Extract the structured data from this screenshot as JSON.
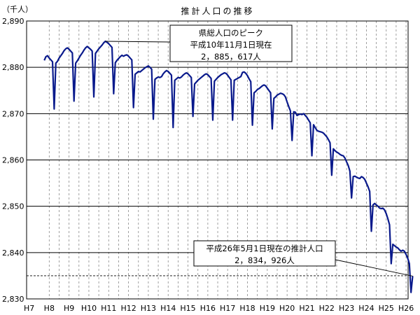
{
  "chart_data": {
    "type": "line",
    "title": "推計人口の推移",
    "ylabel": "（千人）",
    "xlabel": "",
    "ylim": [
      2830,
      2890
    ],
    "yticks": [
      2830,
      2840,
      2850,
      2860,
      2870,
      2880,
      2890
    ],
    "ytick_labels": [
      "2,830",
      "2,840",
      "2,850",
      "2,860",
      "2,870",
      "2,880",
      "2,890"
    ],
    "x_start_year_label": "H7",
    "categories": [
      "H8",
      "H9",
      "H10",
      "H11",
      "H12",
      "H13",
      "H14",
      "H15",
      "H16",
      "H17",
      "H18",
      "H19",
      "H20",
      "H21",
      "H22",
      "H23",
      "H24",
      "H25",
      "H26"
    ],
    "grid": true,
    "dashed_reference_value": 2835,
    "series": [
      {
        "color": "#0a1a8c",
        "points": [
          [
            "H7-10",
            2881.5
          ],
          [
            "H7-11",
            2882.3
          ],
          [
            "H7-12",
            2882.5
          ],
          [
            "H8-01",
            2882.0
          ],
          [
            "H8-02",
            2881.6
          ],
          [
            "H8-03",
            2881.2
          ],
          [
            "H8-04",
            2871.0
          ],
          [
            "H8-05",
            2880.9
          ],
          [
            "H8-06",
            2881.3
          ],
          [
            "H8-07",
            2882.0
          ],
          [
            "H8-08",
            2882.5
          ],
          [
            "H8-09",
            2883.0
          ],
          [
            "H8-10",
            2883.6
          ],
          [
            "H8-11",
            2884.0
          ],
          [
            "H8-12",
            2884.2
          ],
          [
            "H9-01",
            2883.9
          ],
          [
            "H9-02",
            2883.5
          ],
          [
            "H9-03",
            2883.1
          ],
          [
            "H9-04",
            2872.7
          ],
          [
            "H9-05",
            2880.9
          ],
          [
            "H9-06",
            2881.4
          ],
          [
            "H9-07",
            2882.0
          ],
          [
            "H9-08",
            2882.6
          ],
          [
            "H9-09",
            2883.1
          ],
          [
            "H9-10",
            2883.7
          ],
          [
            "H9-11",
            2884.2
          ],
          [
            "H9-12",
            2884.5
          ],
          [
            "H10-01",
            2884.2
          ],
          [
            "H10-02",
            2883.9
          ],
          [
            "H10-03",
            2883.5
          ],
          [
            "H10-04",
            2873.6
          ],
          [
            "H10-05",
            2883.0
          ],
          [
            "H10-06",
            2883.5
          ],
          [
            "H10-07",
            2884.0
          ],
          [
            "H10-08",
            2884.4
          ],
          [
            "H10-09",
            2884.8
          ],
          [
            "H10-10",
            2885.3
          ],
          [
            "H10-11",
            2885.617
          ],
          [
            "H10-12",
            2885.4
          ],
          [
            "H11-01",
            2885.1
          ],
          [
            "H11-02",
            2884.7
          ],
          [
            "H11-03",
            2884.3
          ],
          [
            "H11-04",
            2874.3
          ],
          [
            "H11-05",
            2881.0
          ],
          [
            "H11-06",
            2881.5
          ],
          [
            "H11-07",
            2881.9
          ],
          [
            "H11-08",
            2882.3
          ],
          [
            "H11-09",
            2882.6
          ],
          [
            "H11-10",
            2882.4
          ],
          [
            "H11-11",
            2882.6
          ],
          [
            "H11-12",
            2882.7
          ],
          [
            "H12-01",
            2882.4
          ],
          [
            "H12-02",
            2882.0
          ],
          [
            "H12-03",
            2881.6
          ],
          [
            "H12-04",
            2871.3
          ],
          [
            "H12-05",
            2878.5
          ],
          [
            "H12-06",
            2878.8
          ],
          [
            "H12-07",
            2879.1
          ],
          [
            "H12-08",
            2879.0
          ],
          [
            "H12-09",
            2879.3
          ],
          [
            "H12-10",
            2879.6
          ],
          [
            "H12-11",
            2879.9
          ],
          [
            "H12-12",
            2880.1
          ],
          [
            "H13-01",
            2880.3
          ],
          [
            "H13-02",
            2880.0
          ],
          [
            "H13-03",
            2879.6
          ],
          [
            "H13-04",
            2868.8
          ],
          [
            "H13-05",
            2877.4
          ],
          [
            "H13-06",
            2877.7
          ],
          [
            "H13-07",
            2877.9
          ],
          [
            "H13-08",
            2877.8
          ],
          [
            "H13-09",
            2878.0
          ],
          [
            "H13-10",
            2878.6
          ],
          [
            "H13-11",
            2879.0
          ],
          [
            "H13-12",
            2879.3
          ],
          [
            "H14-01",
            2879.1
          ],
          [
            "H14-02",
            2878.7
          ],
          [
            "H14-03",
            2878.3
          ],
          [
            "H14-04",
            2867.0
          ],
          [
            "H14-05",
            2877.2
          ],
          [
            "H14-06",
            2877.5
          ],
          [
            "H14-07",
            2877.8
          ],
          [
            "H14-08",
            2877.7
          ],
          [
            "H14-09",
            2877.9
          ],
          [
            "H14-10",
            2878.3
          ],
          [
            "H14-11",
            2878.6
          ],
          [
            "H14-12",
            2878.8
          ],
          [
            "H15-01",
            2878.6
          ],
          [
            "H15-02",
            2878.2
          ],
          [
            "H15-03",
            2877.8
          ],
          [
            "H15-04",
            2869.4
          ],
          [
            "H15-05",
            2876.4
          ],
          [
            "H15-06",
            2876.8
          ],
          [
            "H15-07",
            2877.2
          ],
          [
            "H15-08",
            2877.5
          ],
          [
            "H15-09",
            2877.8
          ],
          [
            "H15-10",
            2878.1
          ],
          [
            "H15-11",
            2878.4
          ],
          [
            "H15-12",
            2878.6
          ],
          [
            "H16-01",
            2878.4
          ],
          [
            "H16-02",
            2878.0
          ],
          [
            "H16-03",
            2877.6
          ],
          [
            "H16-04",
            2868.6
          ],
          [
            "H16-05",
            2877.0
          ],
          [
            "H16-06",
            2877.4
          ],
          [
            "H16-07",
            2877.8
          ],
          [
            "H16-08",
            2878.1
          ],
          [
            "H16-09",
            2878.4
          ],
          [
            "H16-10",
            2878.6
          ],
          [
            "H16-11",
            2878.8
          ],
          [
            "H16-12",
            2878.7
          ],
          [
            "H17-01",
            2878.3
          ],
          [
            "H17-02",
            2877.8
          ],
          [
            "H17-03",
            2877.3
          ],
          [
            "H17-04",
            2868.6
          ],
          [
            "H17-05",
            2877.2
          ],
          [
            "H17-06",
            2877.4
          ],
          [
            "H17-07",
            2877.6
          ],
          [
            "H17-08",
            2877.8
          ],
          [
            "H17-09",
            2878.0
          ],
          [
            "H17-10",
            2878.9
          ],
          [
            "H17-11",
            2879.0
          ],
          [
            "H17-12",
            2878.7
          ],
          [
            "H18-01",
            2878.2
          ],
          [
            "H18-02",
            2877.5
          ],
          [
            "H18-03",
            2876.9
          ],
          [
            "H18-04",
            2867.5
          ],
          [
            "H18-05",
            2874.5
          ],
          [
            "H18-06",
            2874.8
          ],
          [
            "H18-07",
            2875.2
          ],
          [
            "H18-08",
            2875.4
          ],
          [
            "H18-09",
            2875.7
          ],
          [
            "H18-10",
            2876.0
          ],
          [
            "H18-11",
            2876.2
          ],
          [
            "H18-12",
            2876.0
          ],
          [
            "H19-01",
            2875.5
          ],
          [
            "H19-02",
            2875.0
          ],
          [
            "H19-03",
            2874.5
          ],
          [
            "H19-04",
            2866.7
          ],
          [
            "H19-05",
            2873.3
          ],
          [
            "H19-06",
            2873.6
          ],
          [
            "H19-07",
            2874.0
          ],
          [
            "H19-08",
            2874.2
          ],
          [
            "H19-09",
            2874.4
          ],
          [
            "H19-10",
            2874.3
          ],
          [
            "H19-11",
            2874.1
          ],
          [
            "H19-12",
            2873.6
          ],
          [
            "H20-01",
            2872.5
          ],
          [
            "H20-02",
            2871.5
          ],
          [
            "H20-03",
            2870.6
          ],
          [
            "H20-04",
            2864.2
          ],
          [
            "H20-05",
            2870.4
          ],
          [
            "H20-06",
            2870.3
          ],
          [
            "H20-07",
            2869.6
          ],
          [
            "H20-08",
            2869.8
          ],
          [
            "H20-09",
            2869.9
          ],
          [
            "H20-10",
            2869.8
          ],
          [
            "H20-11",
            2870.0
          ],
          [
            "H20-12",
            2869.6
          ],
          [
            "H21-01",
            2869.2
          ],
          [
            "H21-02",
            2868.6
          ],
          [
            "H21-03",
            2868.0
          ],
          [
            "H21-04",
            2860.9
          ],
          [
            "H21-05",
            2867.6
          ],
          [
            "H21-06",
            2867.0
          ],
          [
            "H21-07",
            2866.4
          ],
          [
            "H21-08",
            2866.2
          ],
          [
            "H21-09",
            2866.1
          ],
          [
            "H21-10",
            2866.0
          ],
          [
            "H21-11",
            2865.8
          ],
          [
            "H21-12",
            2865.4
          ],
          [
            "H22-01",
            2865.0
          ],
          [
            "H22-02",
            2864.4
          ],
          [
            "H22-03",
            2863.7
          ],
          [
            "H22-04",
            2856.7
          ],
          [
            "H22-05",
            2862.4
          ],
          [
            "H22-06",
            2862.0
          ],
          [
            "H22-07",
            2861.7
          ],
          [
            "H22-08",
            2861.5
          ],
          [
            "H22-09",
            2861.2
          ],
          [
            "H22-10",
            2861.0
          ],
          [
            "H22-11",
            2860.9
          ],
          [
            "H22-12",
            2860.4
          ],
          [
            "H23-01",
            2859.6
          ],
          [
            "H23-02",
            2858.8
          ],
          [
            "H23-03",
            2857.6
          ],
          [
            "H23-04",
            2851.8
          ],
          [
            "H23-05",
            2856.4
          ],
          [
            "H23-06",
            2856.5
          ],
          [
            "H23-07",
            2856.3
          ],
          [
            "H23-08",
            2856.1
          ],
          [
            "H23-09",
            2856.0
          ],
          [
            "H23-10",
            2856.4
          ],
          [
            "H23-11",
            2856.2
          ],
          [
            "H23-12",
            2855.8
          ],
          [
            "H24-01",
            2855.0
          ],
          [
            "H24-02",
            2854.2
          ],
          [
            "H24-03",
            2853.2
          ],
          [
            "H24-04",
            2844.6
          ],
          [
            "H24-05",
            2850.3
          ],
          [
            "H24-06",
            2850.6
          ],
          [
            "H24-07",
            2850.3
          ],
          [
            "H24-08",
            2850.0
          ],
          [
            "H24-09",
            2849.6
          ],
          [
            "H24-10",
            2849.5
          ],
          [
            "H24-11",
            2849.6
          ],
          [
            "H24-12",
            2849.2
          ],
          [
            "H25-01",
            2848.4
          ],
          [
            "H25-02",
            2847.3
          ],
          [
            "H25-03",
            2846.0
          ],
          [
            "H25-04",
            2837.6
          ],
          [
            "H25-05",
            2841.8
          ],
          [
            "H25-06",
            2841.5
          ],
          [
            "H25-07",
            2841.2
          ],
          [
            "H25-08",
            2841.0
          ],
          [
            "H25-09",
            2840.6
          ],
          [
            "H25-10",
            2840.3
          ],
          [
            "H25-11",
            2840.5
          ],
          [
            "H25-12",
            2840.3
          ],
          [
            "H26-01",
            2839.6
          ],
          [
            "H26-02",
            2838.8
          ],
          [
            "H26-03",
            2837.6
          ],
          [
            "H26-04",
            2831.4
          ],
          [
            "H26-05",
            2834.926
          ]
        ]
      }
    ],
    "annotations": [
      {
        "lines": [
          "県総人口のピーク",
          "平成10年11月1日現在",
          "2，885，617人"
        ],
        "x": "H10-11",
        "y": 2885.617
      },
      {
        "lines": [
          "平成26年5月1日現在の推計人口",
          "2，834，926人"
        ],
        "x": "H26-05",
        "y": 2834.926
      }
    ]
  }
}
